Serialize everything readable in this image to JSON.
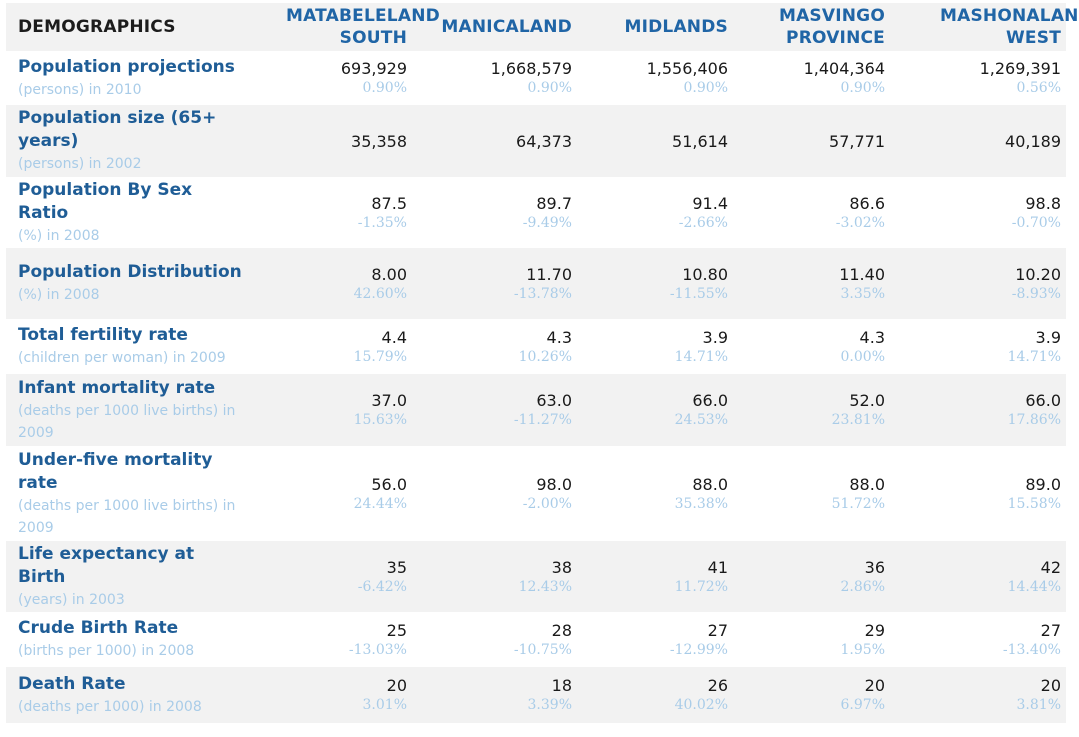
{
  "header": {
    "title": "DEMOGRAPHICS",
    "regions": [
      "MATABELELAND SOUTH",
      "MANICALAND",
      "MIDLANDS",
      "MASVINGO PROVINCE",
      "MASHONALAND WEST"
    ]
  },
  "rows": [
    {
      "name": "Population projections",
      "unit": "(persons) in 2010",
      "cells": [
        {
          "value": "693,929",
          "change": "0.90%"
        },
        {
          "value": "1,668,579",
          "change": "0.90%"
        },
        {
          "value": "1,556,406",
          "change": "0.90%"
        },
        {
          "value": "1,404,364",
          "change": "0.90%"
        },
        {
          "value": "1,269,391",
          "change": "0.56%"
        }
      ]
    },
    {
      "name": "Population size (65+ years)",
      "unit": "(persons) in 2002",
      "cells": [
        {
          "value": "35,358",
          "change": ""
        },
        {
          "value": "64,373",
          "change": ""
        },
        {
          "value": "51,614",
          "change": ""
        },
        {
          "value": "57,771",
          "change": ""
        },
        {
          "value": "40,189",
          "change": ""
        }
      ]
    },
    {
      "name": "Population By Sex Ratio",
      "unit": "(%) in 2008",
      "cells": [
        {
          "value": "87.5",
          "change": "-1.35%"
        },
        {
          "value": "89.7",
          "change": "-9.49%"
        },
        {
          "value": "91.4",
          "change": "-2.66%"
        },
        {
          "value": "86.6",
          "change": "-3.02%"
        },
        {
          "value": "98.8",
          "change": "-0.70%"
        }
      ]
    },
    {
      "name": "Population Distribution",
      "unit": "(%) in 2008",
      "cells": [
        {
          "value": "8.00",
          "change": "42.60%"
        },
        {
          "value": "11.70",
          "change": "-13.78%"
        },
        {
          "value": "10.80",
          "change": "-11.55%"
        },
        {
          "value": "11.40",
          "change": "3.35%"
        },
        {
          "value": "10.20",
          "change": "-8.93%"
        }
      ]
    },
    {
      "name": "Total fertility rate",
      "unit": "(children per woman) in 2009",
      "cells": [
        {
          "value": "4.4",
          "change": "15.79%"
        },
        {
          "value": "4.3",
          "change": "10.26%"
        },
        {
          "value": "3.9",
          "change": "14.71%"
        },
        {
          "value": "4.3",
          "change": "0.00%"
        },
        {
          "value": "3.9",
          "change": "14.71%"
        }
      ]
    },
    {
      "name": "Infant mortality rate",
      "unit": "(deaths per 1000 live births) in 2009",
      "cells": [
        {
          "value": "37.0",
          "change": "15.63%"
        },
        {
          "value": "63.0",
          "change": "-11.27%"
        },
        {
          "value": "66.0",
          "change": "24.53%"
        },
        {
          "value": "52.0",
          "change": "23.81%"
        },
        {
          "value": "66.0",
          "change": "17.86%"
        }
      ]
    },
    {
      "name": "Under-five mortality rate",
      "unit": "(deaths per 1000 live births) in 2009",
      "cells": [
        {
          "value": "56.0",
          "change": "24.44%"
        },
        {
          "value": "98.0",
          "change": "-2.00%"
        },
        {
          "value": "88.0",
          "change": "35.38%"
        },
        {
          "value": "88.0",
          "change": "51.72%"
        },
        {
          "value": "89.0",
          "change": "15.58%"
        }
      ]
    },
    {
      "name": "Life expectancy at Birth",
      "unit": "(years) in 2003",
      "cells": [
        {
          "value": "35",
          "change": "-6.42%"
        },
        {
          "value": "38",
          "change": "12.43%"
        },
        {
          "value": "41",
          "change": "11.72%"
        },
        {
          "value": "36",
          "change": "2.86%"
        },
        {
          "value": "42",
          "change": "14.44%"
        }
      ]
    },
    {
      "name": "Crude Birth Rate",
      "unit": "(births per 1000) in 2008",
      "cells": [
        {
          "value": "25",
          "change": "-13.03%"
        },
        {
          "value": "28",
          "change": "-10.75%"
        },
        {
          "value": "27",
          "change": "-12.99%"
        },
        {
          "value": "29",
          "change": "1.95%"
        },
        {
          "value": "27",
          "change": "-13.40%"
        }
      ]
    },
    {
      "name": "Death Rate",
      "unit": "(deaths per 1000) in 2008",
      "cells": [
        {
          "value": "20",
          "change": "3.01%"
        },
        {
          "value": "18",
          "change": "3.39%"
        },
        {
          "value": "26",
          "change": "40.02%"
        },
        {
          "value": "20",
          "change": "6.97%"
        },
        {
          "value": "20",
          "change": "3.81%"
        }
      ]
    }
  ],
  "colors": {
    "header_text": "#2065a6",
    "indicator_name": "#1f5d96",
    "muted_text": "#a9cce8",
    "value_text": "#1a1a1a",
    "stripe": "#f2f2f2"
  }
}
